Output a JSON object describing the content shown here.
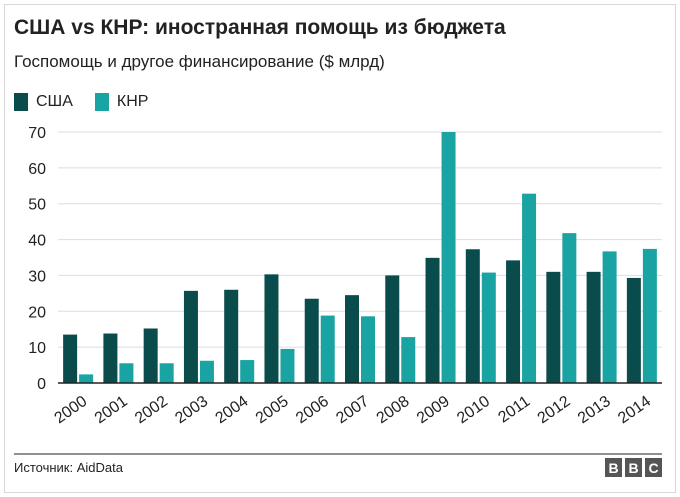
{
  "header": {
    "title": "США vs КНР: иностранная помощь из бюджета",
    "subtitle": "Госпомощь и другое финансирование ($ млрд)"
  },
  "footer": {
    "source": "Источник: AidData",
    "logo_letters": [
      "B",
      "B",
      "C"
    ]
  },
  "colors": {
    "usa": "#0a4b4b",
    "china": "#1aa3a3",
    "grid": "#dddddd",
    "axis": "#222222"
  },
  "chart_data": {
    "type": "bar",
    "categories": [
      "2000",
      "2001",
      "2002",
      "2003",
      "2004",
      "2005",
      "2006",
      "2007",
      "2008",
      "2009",
      "2010",
      "2011",
      "2012",
      "2013",
      "2014"
    ],
    "series": [
      {
        "name": "США",
        "values": [
          13.5,
          13.8,
          15.2,
          25.7,
          26.0,
          30.3,
          23.5,
          24.5,
          30.0,
          34.9,
          37.3,
          34.2,
          31.0,
          31.0,
          29.3
        ]
      },
      {
        "name": "КНР",
        "values": [
          2.4,
          5.5,
          5.5,
          6.2,
          6.4,
          9.5,
          18.8,
          18.6,
          12.8,
          70.0,
          30.8,
          52.8,
          41.8,
          36.7,
          37.4
        ]
      }
    ],
    "ylim": [
      0,
      70
    ],
    "yticks": [
      0,
      10,
      20,
      30,
      40,
      50,
      60,
      70
    ],
    "grid": true,
    "legend": "top-left",
    "xlabel": "",
    "ylabel": ""
  }
}
